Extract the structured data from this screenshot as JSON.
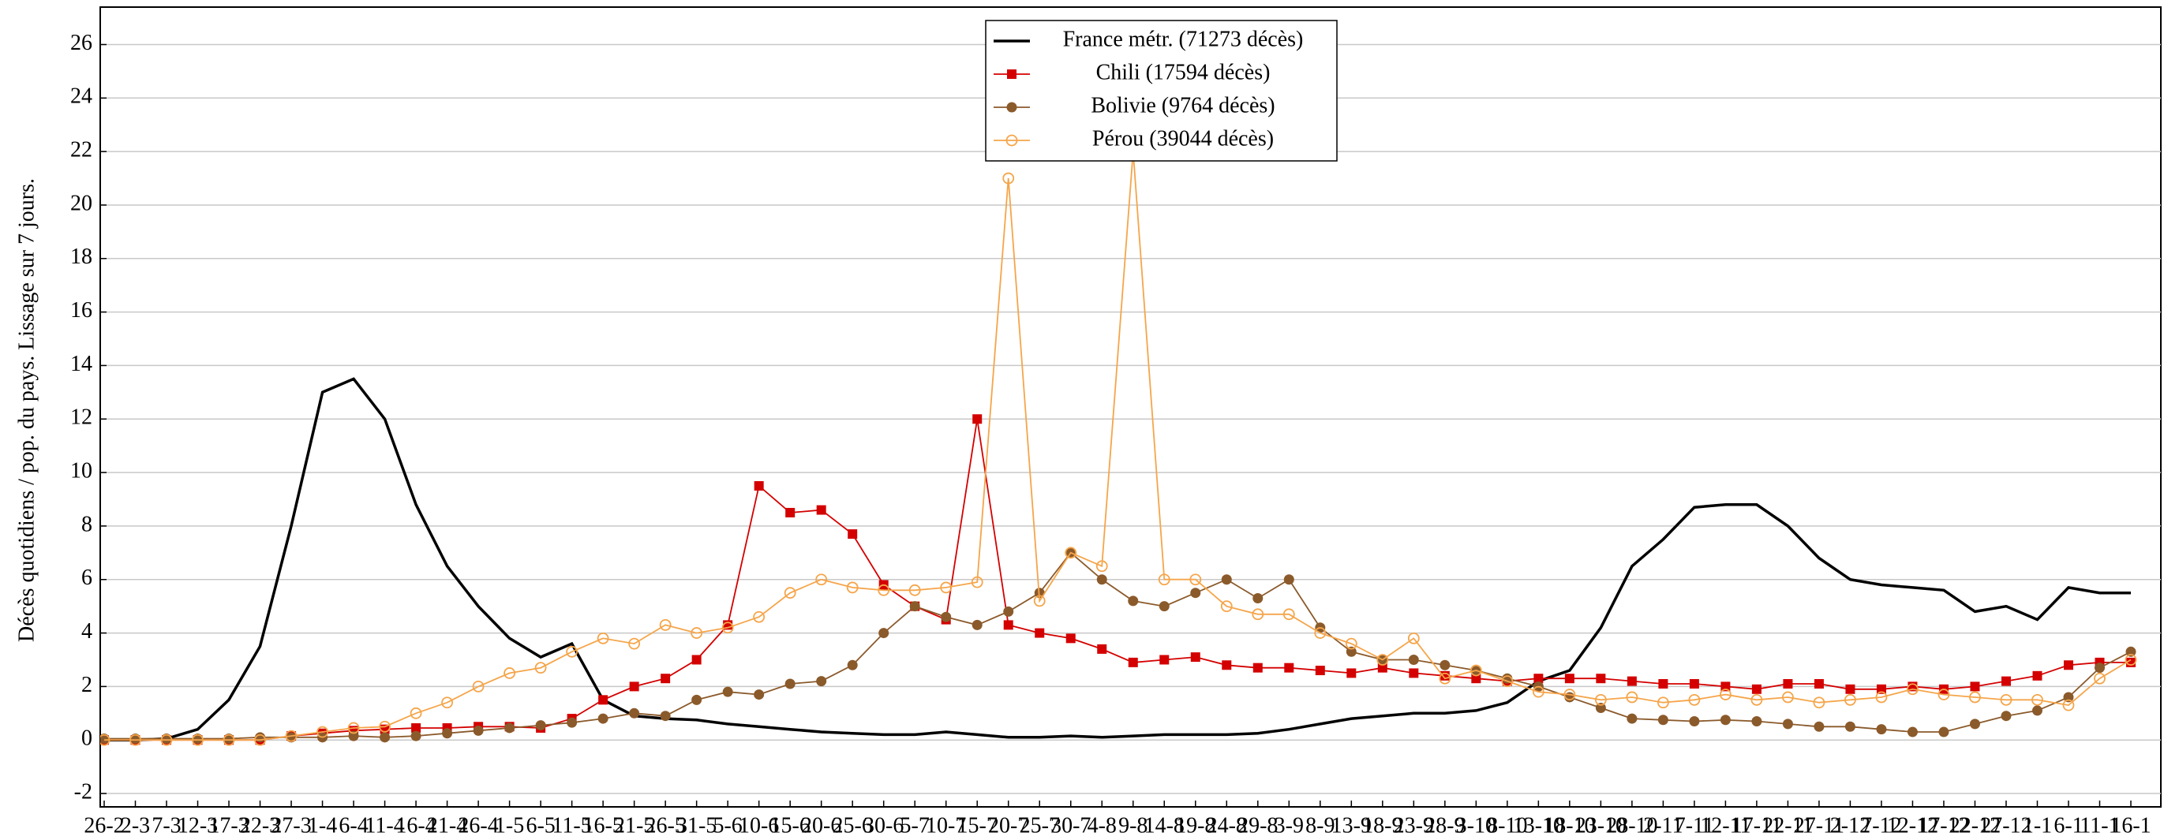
{
  "chart_data": {
    "type": "line",
    "y_label": "Décès quotidiens / pop. du pays. Lissage sur 7 jours.",
    "categories": [
      "26-2",
      "2-3",
      "7-3",
      "12-3",
      "17-3",
      "22-3",
      "27-3",
      "1-4",
      "6-4",
      "11-4",
      "16-4",
      "21-4",
      "26-4",
      "1-5",
      "6-5",
      "11-5",
      "16-5",
      "21-5",
      "26-5",
      "31-5",
      "5-6",
      "10-6",
      "15-6",
      "20-6",
      "25-6",
      "30-6",
      "5-7",
      "10-7",
      "15-7",
      "20-7",
      "25-7",
      "30-7",
      "4-8",
      "9-8",
      "14-8",
      "19-8",
      "24-8",
      "29-8",
      "3-9",
      "8-9",
      "13-9",
      "18-9",
      "23-9",
      "28-9",
      "3-10",
      "8-10",
      "13-10",
      "18-10",
      "23-10",
      "28-10",
      "2-11",
      "7-11",
      "12-11",
      "17-11",
      "22-11",
      "27-11",
      "2-12",
      "7-12",
      "12-12",
      "17-12",
      "22-12",
      "27-12",
      "1-1",
      "6-1",
      "11-1",
      "16-1"
    ],
    "series": [
      {
        "name": "France métr. (71273 décès)",
        "color": "#000000",
        "marker": "none",
        "values": [
          0,
          0,
          0.05,
          0.4,
          1.5,
          3.5,
          8,
          13,
          13.5,
          12,
          8.8,
          6.5,
          5,
          3.8,
          3.1,
          3.6,
          1.5,
          0.9,
          0.8,
          0.75,
          0.6,
          0.5,
          0.4,
          0.3,
          0.25,
          0.2,
          0.2,
          0.3,
          0.2,
          0.1,
          0.1,
          0.15,
          0.1,
          0.15,
          0.2,
          0.2,
          0.2,
          0.25,
          0.4,
          0.6,
          0.8,
          0.9,
          1,
          1,
          1.1,
          1.4,
          2.2,
          2.6,
          4.2,
          6.5,
          7.5,
          8.7,
          8.8,
          8.8,
          8,
          6.8,
          6,
          5.8,
          5.7,
          5.6,
          4.8,
          5,
          4.5,
          5.7,
          5.5,
          5.5
        ]
      },
      {
        "name": "Chili (17594 décès)",
        "color": "#d40000",
        "marker": "square",
        "values": [
          0,
          0,
          0,
          0,
          0,
          0,
          0.15,
          0.25,
          0.35,
          0.4,
          0.45,
          0.45,
          0.5,
          0.5,
          0.45,
          0.8,
          1.5,
          2,
          2.3,
          3,
          4.3,
          9.5,
          8.5,
          8.6,
          7.7,
          5.8,
          5,
          4.5,
          12,
          4.3,
          4,
          3.8,
          3.4,
          2.9,
          3,
          3.1,
          2.8,
          2.7,
          2.7,
          2.6,
          2.5,
          2.7,
          2.5,
          2.4,
          2.3,
          2.2,
          2.3,
          2.3,
          2.3,
          2.2,
          2.1,
          2.1,
          2,
          1.9,
          2.1,
          2.1,
          1.9,
          1.9,
          2,
          1.9,
          2,
          2.2,
          2.4,
          2.8,
          2.9,
          2.9
        ]
      },
      {
        "name": "Bolivie (9764 décès)",
        "color": "#8b5a2b",
        "marker": "circle",
        "values": [
          0.05,
          0.05,
          0.05,
          0.05,
          0.05,
          0.1,
          0.1,
          0.1,
          0.15,
          0.1,
          0.15,
          0.25,
          0.35,
          0.45,
          0.55,
          0.65,
          0.8,
          1,
          0.9,
          1.5,
          1.8,
          1.7,
          2.1,
          2.2,
          2.8,
          4,
          5,
          4.6,
          4.3,
          4.8,
          5.5,
          7,
          6,
          5.2,
          5,
          5.5,
          6,
          5.3,
          6,
          4.2,
          3.3,
          3,
          3,
          2.8,
          2.6,
          2.3,
          2,
          1.6,
          1.2,
          0.8,
          0.75,
          0.7,
          0.75,
          0.7,
          0.6,
          0.5,
          0.5,
          0.4,
          0.3,
          0.3,
          0.6,
          0.9,
          1.1,
          1.6,
          2.7,
          3.3
        ]
      },
      {
        "name": "Pérou (39044 décès)",
        "color": "#f5a54a",
        "marker": "open-circle",
        "values": [
          0,
          0,
          0,
          0,
          0,
          0,
          0.15,
          0.3,
          0.45,
          0.5,
          1,
          1.4,
          2,
          2.5,
          2.7,
          3.3,
          3.8,
          3.6,
          4.3,
          4,
          4.2,
          4.6,
          5.5,
          6,
          5.7,
          5.6,
          5.6,
          5.7,
          5.9,
          21,
          5.2,
          7,
          6.5,
          22,
          6,
          6,
          5,
          4.7,
          4.7,
          4,
          3.6,
          3,
          3.8,
          2.3,
          2.6,
          2.2,
          1.8,
          1.7,
          1.5,
          1.6,
          1.4,
          1.5,
          1.7,
          1.5,
          1.6,
          1.4,
          1.5,
          1.6,
          1.9,
          1.7,
          1.6,
          1.5,
          1.5,
          1.3,
          2.3,
          3
        ]
      }
    ],
    "ylim": [
      -2.5,
      27.4
    ],
    "yticks": [
      -2,
      0,
      2,
      4,
      6,
      8,
      10,
      12,
      14,
      16,
      18,
      20,
      22,
      24,
      26
    ],
    "grid": true,
    "legend": "top-center"
  }
}
